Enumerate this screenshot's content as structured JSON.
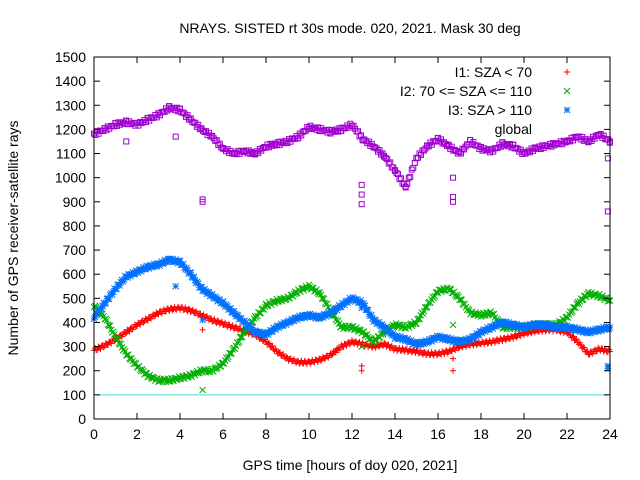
{
  "chart_data": {
    "type": "scatter",
    "title": "NRAYS. SISTED rt 30s mode. 020, 2021. Mask 30 deg",
    "xlabel": "GPS time [hours of doy 020, 2021]",
    "ylabel": "Number of GPS receiver-satellite rays",
    "xlim": [
      0,
      24
    ],
    "ylim": [
      0,
      1500
    ],
    "xticks": [
      0,
      2,
      4,
      6,
      8,
      10,
      12,
      14,
      16,
      18,
      20,
      22,
      24
    ],
    "yticks": [
      0,
      100,
      200,
      300,
      400,
      500,
      600,
      700,
      800,
      900,
      1000,
      1100,
      1200,
      1300,
      1400,
      1500
    ],
    "grid": false,
    "legend_position": "top-right",
    "reference_line": {
      "y": 100,
      "color": "#40e0e0"
    },
    "series": [
      {
        "name": "I1: SZA < 70",
        "marker": "+",
        "color": "#ff0000",
        "x": [
          0,
          0.5,
          1,
          1.5,
          2,
          2.5,
          3,
          3.5,
          4,
          4.5,
          5,
          5.5,
          6,
          6.5,
          7,
          7.5,
          8,
          8.5,
          9,
          9.5,
          10,
          10.5,
          11,
          11.5,
          12,
          12.5,
          13,
          13.5,
          14,
          14.5,
          15,
          15.5,
          16,
          16.5,
          17,
          17.5,
          18,
          18.5,
          19,
          19.5,
          20,
          20.5,
          21,
          21.5,
          22,
          22.5,
          23,
          23.5,
          24
        ],
        "y": [
          285,
          305,
          330,
          360,
          390,
          415,
          440,
          455,
          460,
          450,
          430,
          410,
          395,
          380,
          365,
          350,
          320,
          280,
          250,
          235,
          235,
          245,
          265,
          300,
          320,
          310,
          300,
          310,
          290,
          285,
          280,
          270,
          270,
          280,
          300,
          310,
          315,
          320,
          330,
          340,
          355,
          365,
          370,
          370,
          360,
          320,
          270,
          290,
          280
        ],
        "outliers": [
          [
            5.05,
            370
          ],
          [
            12.45,
            220
          ],
          [
            12.45,
            200
          ],
          [
            16.7,
            200
          ],
          [
            16.7,
            250
          ]
        ]
      },
      {
        "name": "I2: 70 <= SZA <= 110",
        "marker": "x",
        "color": "#00b000",
        "x": [
          0,
          0.5,
          1,
          1.5,
          2,
          2.5,
          3,
          3.5,
          4,
          4.5,
          5,
          5.5,
          6,
          6.5,
          7,
          7.5,
          8,
          8.5,
          9,
          9.5,
          10,
          10.5,
          11,
          11.5,
          12,
          12.5,
          13,
          13.5,
          14,
          14.5,
          15,
          15.5,
          16,
          16.5,
          17,
          17.5,
          18,
          18.5,
          19,
          19.5,
          20,
          20.5,
          21,
          21.5,
          22,
          22.5,
          23,
          23.5,
          24
        ],
        "y": [
          470,
          420,
          340,
          270,
          220,
          180,
          160,
          160,
          170,
          180,
          200,
          200,
          230,
          290,
          360,
          420,
          470,
          490,
          500,
          530,
          550,
          520,
          450,
          380,
          380,
          360,
          320,
          360,
          390,
          380,
          400,
          470,
          530,
          540,
          500,
          440,
          430,
          440,
          380,
          380,
          380,
          390,
          390,
          390,
          420,
          480,
          520,
          510,
          490
        ],
        "outliers": [
          [
            5.05,
            120
          ],
          [
            12.45,
            300
          ],
          [
            16.7,
            390
          ]
        ]
      },
      {
        "name": "I3: SZA > 110",
        "marker": "*",
        "color": "#0070ff",
        "x": [
          0,
          0.5,
          1,
          1.5,
          2,
          2.5,
          3,
          3.5,
          4,
          4.5,
          5,
          5.5,
          6,
          6.5,
          7,
          7.5,
          8,
          8.5,
          9,
          9.5,
          10,
          10.5,
          11,
          11.5,
          12,
          12.5,
          13,
          13.5,
          14,
          14.5,
          15,
          15.5,
          16,
          16.5,
          17,
          17.5,
          18,
          18.5,
          19,
          19.5,
          20,
          20.5,
          21,
          21.5,
          22,
          22.5,
          23,
          23.5,
          24
        ],
        "y": [
          420,
          480,
          540,
          590,
          610,
          630,
          640,
          660,
          650,
          600,
          540,
          510,
          480,
          440,
          400,
          360,
          350,
          380,
          400,
          420,
          430,
          420,
          440,
          470,
          500,
          480,
          410,
          380,
          340,
          330,
          310,
          320,
          340,
          330,
          320,
          330,
          360,
          380,
          400,
          390,
          380,
          390,
          390,
          380,
          380,
          370,
          360,
          370,
          380
        ],
        "outliers": [
          [
            3.8,
            550
          ],
          [
            5.05,
            410
          ],
          [
            12.45,
            460
          ],
          [
            23.9,
            220
          ],
          [
            23.9,
            210
          ]
        ]
      },
      {
        "name": "global",
        "marker": "square",
        "color": "#a000d0",
        "x": [
          0,
          0.5,
          1,
          1.5,
          2,
          2.5,
          3,
          3.5,
          4,
          4.5,
          5,
          5.5,
          6,
          6.5,
          7,
          7.5,
          8,
          8.5,
          9,
          9.5,
          10,
          10.5,
          11,
          11.5,
          12,
          12.5,
          13,
          13.5,
          14,
          14.5,
          15,
          15.5,
          16,
          16.5,
          17,
          17.5,
          18,
          18.5,
          19,
          19.5,
          20,
          20.5,
          21,
          21.5,
          22,
          22.5,
          23,
          23.5,
          24
        ],
        "y": [
          1180,
          1200,
          1220,
          1230,
          1220,
          1240,
          1260,
          1290,
          1280,
          1240,
          1200,
          1170,
          1120,
          1100,
          1110,
          1100,
          1130,
          1140,
          1150,
          1170,
          1210,
          1200,
          1190,
          1200,
          1220,
          1160,
          1130,
          1090,
          1030,
          960,
          1080,
          1130,
          1160,
          1130,
          1100,
          1150,
          1120,
          1110,
          1140,
          1130,
          1100,
          1120,
          1130,
          1140,
          1150,
          1170,
          1150,
          1180,
          1150
        ],
        "outliers": [
          [
            1.5,
            1150
          ],
          [
            3.8,
            1170
          ],
          [
            5.05,
            900
          ],
          [
            5.05,
            910
          ],
          [
            12.45,
            970
          ],
          [
            12.45,
            930
          ],
          [
            12.45,
            890
          ],
          [
            16.7,
            1000
          ],
          [
            16.7,
            920
          ],
          [
            16.7,
            900
          ],
          [
            23.9,
            1080
          ],
          [
            23.9,
            860
          ]
        ]
      }
    ]
  }
}
